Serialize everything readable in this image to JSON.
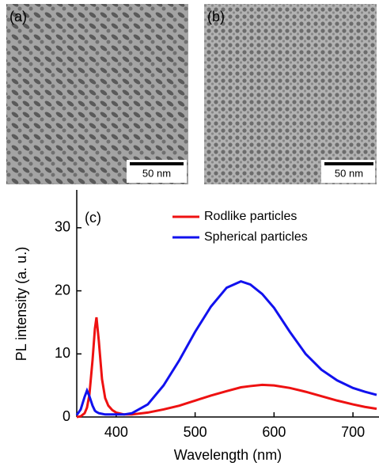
{
  "panels": [
    {
      "label": "(a)",
      "scale_bar": "50 nm"
    },
    {
      "label": "(b)",
      "scale_bar": "50 nm"
    }
  ],
  "chart_data": {
    "type": "line",
    "annotation": "(c)",
    "x_label": "Wavelength (nm)",
    "y_label": "PL intensity (a. u.)",
    "x": [
      350,
      355,
      360,
      363,
      366,
      370,
      373,
      375,
      378,
      382,
      386,
      390,
      395,
      400,
      410,
      420,
      440,
      460,
      480,
      500,
      520,
      540,
      558,
      570,
      585,
      600,
      620,
      640,
      660,
      680,
      700,
      715,
      730
    ],
    "series": [
      {
        "name": "Rodlike particles",
        "color": "#ee1111",
        "values": [
          0,
          0.1,
          0.6,
          1.5,
          3.5,
          9,
          14,
          15.8,
          12,
          6,
          3,
          1.8,
          1.1,
          0.7,
          0.4,
          0.4,
          0.7,
          1.2,
          1.8,
          2.6,
          3.4,
          4.1,
          4.7,
          4.9,
          5.1,
          5.0,
          4.6,
          4.0,
          3.3,
          2.6,
          2.0,
          1.6,
          1.3
        ]
      },
      {
        "name": "Spherical particles",
        "color": "#1111ee",
        "values": [
          0.3,
          1.2,
          3.2,
          4.2,
          3.3,
          1.8,
          1.0,
          0.8,
          0.6,
          0.5,
          0.4,
          0.4,
          0.4,
          0.4,
          0.4,
          0.6,
          2.0,
          5.0,
          9.0,
          13.5,
          17.5,
          20.5,
          21.5,
          21.0,
          19.5,
          17.3,
          13.5,
          10.0,
          7.5,
          5.8,
          4.6,
          4.0,
          3.5
        ]
      }
    ],
    "xlim": [
      350,
      733
    ],
    "ylim": [
      0,
      36
    ],
    "xticks": [
      400,
      500,
      600,
      700
    ],
    "yticks": [
      0,
      10,
      20,
      30
    ],
    "legend": "upper right"
  }
}
